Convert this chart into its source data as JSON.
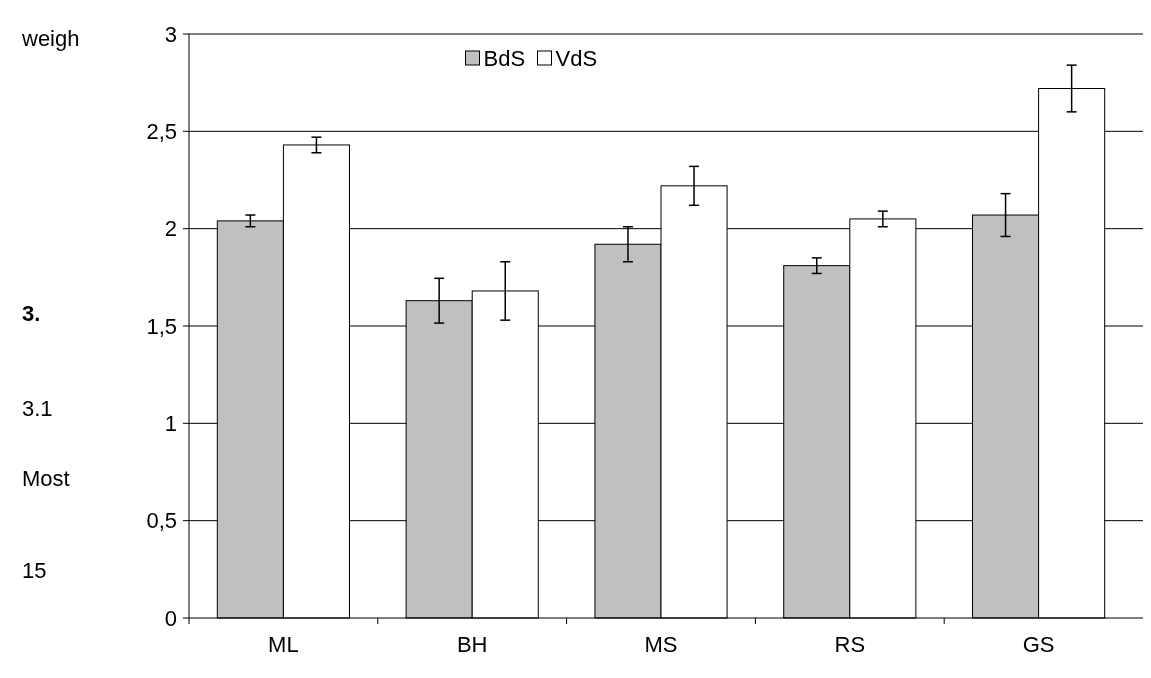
{
  "chart_data": {
    "type": "bar",
    "categories": [
      "ML",
      "BH",
      "MS",
      "RS",
      "GS"
    ],
    "series": [
      {
        "name": "BdS",
        "color": "#c0c0c0",
        "values": [
          2.04,
          1.63,
          1.92,
          1.81,
          2.07
        ],
        "errors": [
          0.03,
          0.115,
          0.09,
          0.04,
          0.11
        ]
      },
      {
        "name": "VdS",
        "color": "#ffffff",
        "values": [
          2.43,
          1.68,
          2.22,
          2.05,
          2.72
        ],
        "errors": [
          0.04,
          0.15,
          0.1,
          0.04,
          0.12
        ]
      }
    ],
    "ylim": [
      0,
      3
    ],
    "yticks": [
      0,
      {
        "value": 0.5,
        "label": "0,5"
      },
      1,
      {
        "value": 1.5,
        "label": "1,5"
      },
      2,
      {
        "value": 2.5,
        "label": "2,5"
      },
      3
    ],
    "grid": "y",
    "legend": "top",
    "annotations": [
      "weigh",
      "3.",
      "3.1",
      "Most",
      "15"
    ]
  }
}
